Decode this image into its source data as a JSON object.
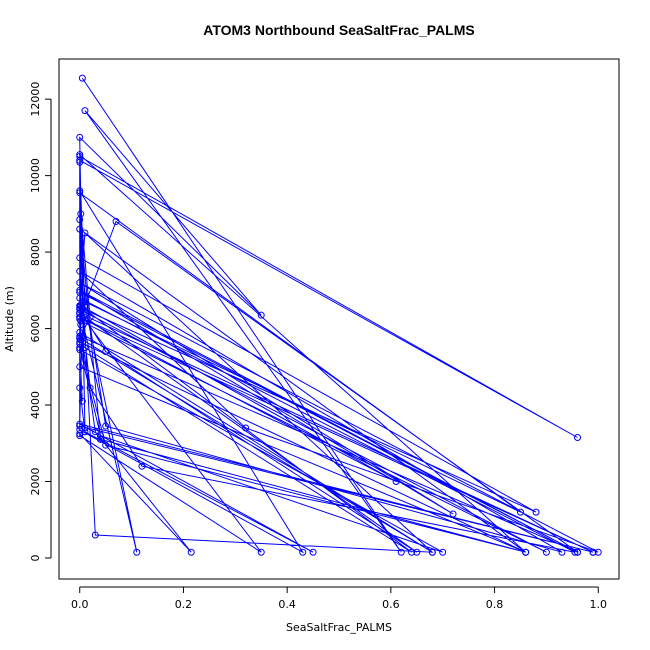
{
  "chart_data": {
    "type": "line",
    "title": "ATOM3 Northbound SeaSaltFrac_PALMS",
    "xlabel": "SeaSaltFrac_PALMS",
    "ylabel": "Altitude (m)",
    "xlim": [
      -0.04,
      1.04
    ],
    "ylim": [
      -550,
      13050
    ],
    "xticks": [
      0.0,
      0.2,
      0.4,
      0.6,
      0.8,
      1.0
    ],
    "xtick_labels": [
      "0.0",
      "0.2",
      "0.4",
      "0.6",
      "0.8",
      "1.0"
    ],
    "yticks": [
      0,
      2000,
      4000,
      6000,
      8000,
      10000,
      12000
    ],
    "ytick_labels": [
      "0",
      "2000",
      "4000",
      "6000",
      "8000",
      "10000",
      "12000"
    ],
    "color": "#0000ff",
    "grid": false,
    "legend": "none",
    "series": [
      {
        "x": [
          0.005,
          0.62,
          0.01,
          0.35,
          0.0,
          0.01,
          0.0,
          0.96,
          0.0,
          0.01,
          0.0,
          0.0,
          0.61,
          0.002,
          0.002,
          0.0,
          0.85,
          0.01,
          0.0,
          0.04,
          0.86,
          0.0,
          0.03,
          0.68,
          0.01,
          0.0,
          0.88,
          0.0,
          0.05,
          0.93,
          0.0,
          0.32,
          1.0,
          0.0,
          0.72,
          0.0,
          0.96,
          0.0,
          0.02,
          0.12,
          0.955,
          0.0,
          0.0,
          0.01,
          0.11,
          0.0,
          0.05,
          0.65,
          0.0,
          0.99,
          0.0,
          0.0,
          0.07,
          0.96,
          0.0,
          0.0,
          0.05,
          0.86,
          0.0,
          0.0,
          0.04,
          0.7,
          0.0,
          0.005,
          0.0,
          0.01,
          0.45,
          0.0,
          0.99,
          0.0,
          0.004,
          0.03,
          0.215,
          0.0,
          0.0,
          0.35,
          0.0,
          0.0,
          0.43,
          0.0,
          0.0,
          0.86,
          0.0,
          0.002,
          0.9,
          0.0,
          0.0,
          0.68,
          0.0,
          0.0,
          0.64,
          0.01,
          0.0,
          0.02,
          0.002,
          0.005,
          0.002
        ],
        "y": [
          12550,
          150,
          11700,
          6350,
          11000,
          3400,
          10500,
          3150,
          10400,
          6450,
          10350,
          6300,
          2000,
          6600,
          5700,
          9550,
          1200,
          6700,
          8850,
          3100,
          150,
          8600,
          600,
          150,
          8500,
          6550,
          1200,
          7850,
          3450,
          150,
          7500,
          3400,
          150,
          7200,
          1150,
          7000,
          150,
          6950,
          4450,
          2400,
          150,
          6800,
          6400,
          6600,
          150,
          6500,
          5400,
          150,
          6400,
          150,
          6300,
          6250,
          8800,
          150,
          5800,
          5600,
          2950,
          150,
          5650,
          5500,
          3200,
          150,
          5450,
          4100,
          4450,
          3300,
          150,
          3500,
          150,
          3450,
          5800,
          3300,
          150,
          3250,
          3200,
          150,
          6400,
          3350,
          150,
          9600,
          5000,
          150,
          10550,
          6200,
          150,
          6500,
          5900,
          150,
          5750,
          6600,
          150,
          5500,
          5750,
          6300,
          9000,
          6500,
          6100
        ]
      }
    ]
  }
}
